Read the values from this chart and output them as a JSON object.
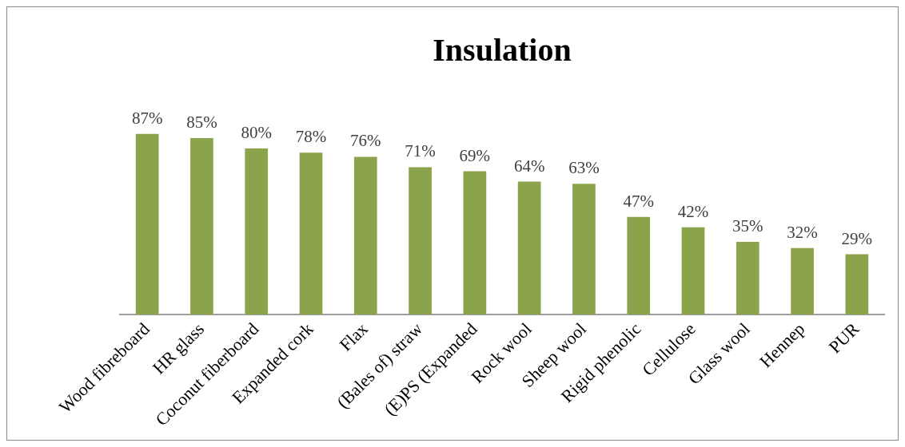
{
  "chart_data": {
    "type": "bar",
    "title": "Insulation",
    "categories": [
      "Wood fibreboard",
      "HR glass",
      "Coconut fiberboard",
      "Expanded cork",
      "Flax",
      "(Bales of) straw",
      "(E)PS (Expanded",
      "Rock wool",
      "Sheep wool",
      "Rigid phenolic",
      "Cellulose",
      "Glass wool",
      "Hennep",
      "PUR"
    ],
    "values": [
      87,
      85,
      80,
      78,
      76,
      71,
      69,
      64,
      63,
      47,
      42,
      35,
      32,
      29
    ],
    "value_labels": [
      "87%",
      "85%",
      "80%",
      "78%",
      "76%",
      "71%",
      "69%",
      "64%",
      "63%",
      "47%",
      "42%",
      "35%",
      "32%",
      "29%"
    ],
    "color": "#8ba34b",
    "grid": false,
    "legend": false,
    "tick_labels": "x"
  }
}
